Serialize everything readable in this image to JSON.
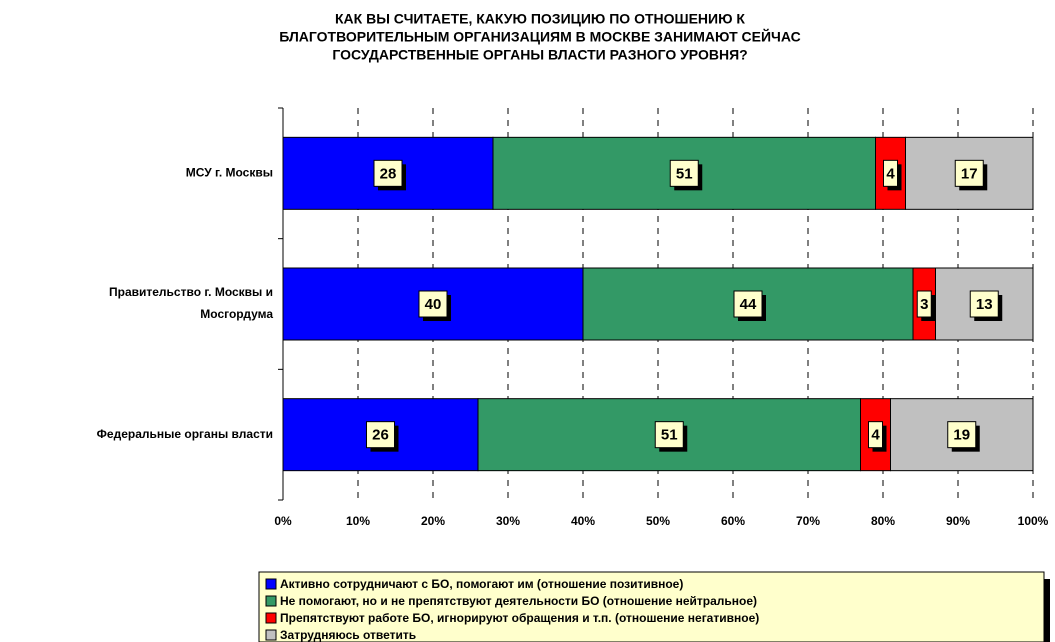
{
  "chart_data": {
    "type": "stacked_barh",
    "title": [
      "КАК ВЫ СЧИТАЕТЕ, КАКУЮ ПОЗИЦИЮ ПО ОТНОШЕНИЮ К",
      "БЛАГОТВОРИТЕЛЬНЫМ ОРГАНИЗАЦИЯМ В МОСКВЕ ЗАНИМАЮТ СЕЙЧАС",
      "ГОСУДАРСТВЕННЫЕ ОРГАНЫ ВЛАСТИ РАЗНОГО УРОВНЯ?"
    ],
    "categories": [
      [
        "МСУ г. Москвы"
      ],
      [
        "Правительство г. Москвы и",
        "Мосгордума"
      ],
      [
        "Федеральные органы власти"
      ]
    ],
    "series": [
      {
        "name": "Активно сотрудничают с БО, помогают им (отношение позитивное)",
        "color": "#0000ff",
        "values": [
          28,
          40,
          26
        ]
      },
      {
        "name": "Не помогают, но и не препятствуют деятельности БО (отношение нейтральное)",
        "color": "#339966",
        "values": [
          51,
          44,
          51
        ]
      },
      {
        "name": "Препятствуют работе БО, игнорируют обращения и т.п. (отношение негативное)",
        "color": "#ff0000",
        "values": [
          4,
          3,
          4
        ]
      },
      {
        "name": "Затрудняюсь ответить",
        "color": "#c0c0c0",
        "values": [
          17,
          13,
          19
        ]
      }
    ],
    "xlim": [
      0,
      100
    ],
    "xticks": [
      {
        "value": 0,
        "label": "0%"
      },
      {
        "value": 10,
        "label": "10%"
      },
      {
        "value": 20,
        "label": "20%"
      },
      {
        "value": 30,
        "label": "30%"
      },
      {
        "value": 40,
        "label": "40%"
      },
      {
        "value": 50,
        "label": "50%"
      },
      {
        "value": 60,
        "label": "60%"
      },
      {
        "value": 70,
        "label": "70%"
      },
      {
        "value": 80,
        "label": "80%"
      },
      {
        "value": 90,
        "label": "90%"
      },
      {
        "value": 100,
        "label": "100%"
      }
    ],
    "grid": true,
    "legend": "bottom"
  }
}
